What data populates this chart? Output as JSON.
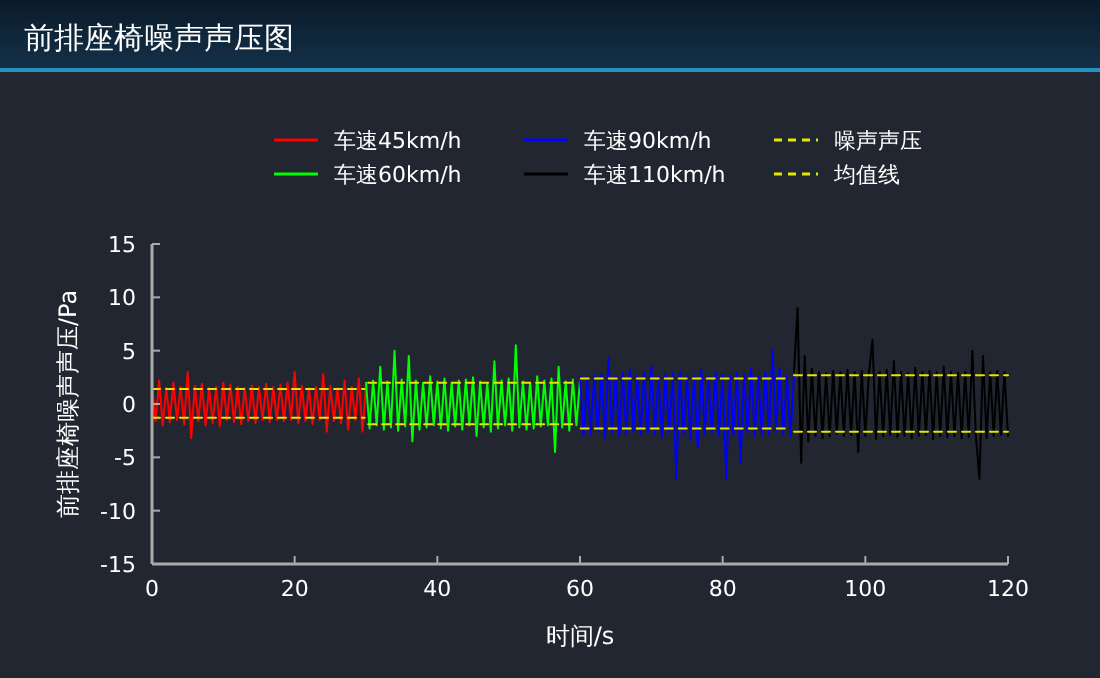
{
  "chart_data": {
    "type": "line",
    "title": "前排座椅噪声声压图",
    "xlabel": "时间/s",
    "ylabel": "前排座椅噪声声压/Pa",
    "xlim": [
      0,
      120
    ],
    "xticks": [
      0,
      20,
      40,
      60,
      80,
      100,
      120
    ],
    "ylim": [
      -15,
      15
    ],
    "yticks": [
      -15,
      -10,
      -5,
      0,
      5,
      10,
      15
    ],
    "grid": false,
    "legend": "top right",
    "series": [
      {
        "name": "车速45km/h",
        "color": "#ff0000",
        "x": [
          0,
          0.5,
          1,
          1.5,
          2,
          2.5,
          3,
          3.5,
          4,
          4.5,
          5,
          5.5,
          6,
          6.5,
          7,
          7.5,
          8,
          8.5,
          9,
          9.5,
          10,
          10.5,
          11,
          11.5,
          12,
          12.5,
          13,
          13.5,
          14,
          14.5,
          15,
          15.5,
          16,
          16.5,
          17,
          17.5,
          18,
          18.5,
          19,
          19.5,
          20,
          20.5,
          21,
          21.5,
          22,
          22.5,
          23,
          23.5,
          24,
          24.5,
          25,
          25.5,
          26,
          26.5,
          27,
          27.5,
          28,
          28.5,
          29,
          29.5,
          30
        ],
        "values": [
          1.8,
          -1.6,
          2.2,
          -2.0,
          1.5,
          -1.7,
          2.0,
          -1.5,
          1.6,
          -1.9,
          3.0,
          -3.2,
          1.7,
          -1.6,
          1.9,
          -2.0,
          1.5,
          -1.8,
          1.6,
          -2.1,
          2.0,
          -1.5,
          1.8,
          -1.7,
          1.6,
          -1.9,
          1.5,
          -1.6,
          1.7,
          -1.8,
          1.6,
          -1.5,
          1.9,
          -1.7,
          1.6,
          -1.5,
          1.8,
          -1.6,
          2.0,
          -1.5,
          3.0,
          -1.8,
          1.7,
          -1.6,
          1.5,
          -1.9,
          1.6,
          -1.5,
          2.8,
          -2.6,
          1.7,
          -1.6,
          1.5,
          -1.8,
          2.2,
          -2.4,
          1.6,
          -1.5,
          2.4,
          -2.6,
          1.7
        ]
      },
      {
        "name": "车速60km/h",
        "color": "#00ff00",
        "x": [
          30,
          30.5,
          31,
          31.5,
          32,
          32.5,
          33,
          33.5,
          34,
          34.5,
          35,
          35.5,
          36,
          36.5,
          37,
          37.5,
          38,
          38.5,
          39,
          39.5,
          40,
          40.5,
          41,
          41.5,
          42,
          42.5,
          43,
          43.5,
          44,
          44.5,
          45,
          45.5,
          46,
          46.5,
          47,
          47.5,
          48,
          48.5,
          49,
          49.5,
          50,
          50.5,
          51,
          51.5,
          52,
          52.5,
          53,
          53.5,
          54,
          54.5,
          55,
          55.5,
          56,
          56.5,
          57,
          57.5,
          58,
          58.5,
          59,
          59.5,
          60
        ],
        "values": [
          2.0,
          -2.3,
          2.2,
          -2.0,
          3.5,
          -2.4,
          2.1,
          -2.2,
          5.0,
          -2.5,
          2.3,
          -2.1,
          4.5,
          -3.5,
          2.2,
          -2.4,
          2.0,
          -2.2,
          2.6,
          -2.0,
          2.1,
          -2.3,
          2.4,
          -2.5,
          2.0,
          -2.1,
          2.2,
          -2.4,
          2.3,
          -2.0,
          2.5,
          -3.0,
          2.1,
          -2.2,
          2.0,
          -2.6,
          4.0,
          -2.3,
          2.2,
          -2.0,
          2.4,
          -2.5,
          5.5,
          -2.2,
          2.1,
          -2.4,
          2.0,
          -2.3,
          2.6,
          -2.1,
          2.2,
          -2.0,
          2.4,
          -4.5,
          3.5,
          -2.2,
          2.1,
          -2.5,
          2.3,
          -2.0,
          2.2
        ]
      },
      {
        "name": "车速90km/h",
        "color": "#0000ff",
        "x": [
          60,
          60.5,
          61,
          61.5,
          62,
          62.5,
          63,
          63.5,
          64,
          64.5,
          65,
          65.5,
          66,
          66.5,
          67,
          67.5,
          68,
          68.5,
          69,
          69.5,
          70,
          70.5,
          71,
          71.5,
          72,
          72.5,
          73,
          73.5,
          74,
          74.5,
          75,
          75.5,
          76,
          76.5,
          77,
          77.5,
          78,
          78.5,
          79,
          79.5,
          80,
          80.5,
          81,
          81.5,
          82,
          82.5,
          83,
          83.5,
          84,
          84.5,
          85,
          85.5,
          86,
          86.5,
          87,
          87.5,
          88,
          88.5,
          89,
          89.5,
          90
        ],
        "values": [
          2.6,
          -3.0,
          2.5,
          -2.8,
          2.7,
          -2.6,
          2.8,
          -3.2,
          4.3,
          -2.7,
          2.6,
          -3.0,
          2.9,
          -2.8,
          3.2,
          -2.6,
          2.7,
          -2.9,
          3.0,
          -2.7,
          3.5,
          -2.8,
          2.6,
          -3.1,
          2.8,
          -2.7,
          2.9,
          -7.0,
          3.0,
          -2.8,
          2.6,
          -3.3,
          2.7,
          -4.0,
          3.2,
          -2.8,
          2.6,
          -2.7,
          3.0,
          -3.0,
          2.8,
          -7.0,
          2.7,
          -2.9,
          3.0,
          -5.5,
          2.8,
          -2.7,
          3.3,
          -3.0,
          2.6,
          -2.8,
          3.0,
          -2.9,
          5.0,
          -2.6,
          3.4,
          -2.8,
          2.7,
          -3.0,
          2.6
        ]
      },
      {
        "name": "车速110km/h",
        "color": "#000000",
        "x": [
          90,
          90.5,
          91,
          91.5,
          92,
          92.5,
          93,
          93.5,
          94,
          94.5,
          95,
          95.5,
          96,
          96.5,
          97,
          97.5,
          98,
          98.5,
          99,
          99.5,
          100,
          100.5,
          101,
          101.5,
          102,
          102.5,
          103,
          103.5,
          104,
          104.5,
          105,
          105.5,
          106,
          106.5,
          107,
          107.5,
          108,
          108.5,
          109,
          109.5,
          110,
          110.5,
          111,
          111.5,
          112,
          112.5,
          113,
          113.5,
          114,
          114.5,
          115,
          115.5,
          116,
          116.5,
          117,
          117.5,
          118,
          118.5,
          119,
          119.5,
          120
        ],
        "values": [
          3.0,
          9.0,
          -5.5,
          4.5,
          -3.5,
          3.3,
          -3.0,
          3.0,
          -3.2,
          2.9,
          -3.0,
          3.1,
          -2.8,
          3.0,
          -3.0,
          3.2,
          -2.9,
          3.0,
          -4.5,
          3.1,
          -3.0,
          2.9,
          6.0,
          -3.3,
          3.0,
          -3.0,
          3.2,
          -2.9,
          4.0,
          -3.1,
          3.0,
          -3.0,
          2.9,
          -3.2,
          3.4,
          -3.0,
          3.0,
          -2.9,
          3.1,
          -3.3,
          3.0,
          -3.0,
          3.5,
          -3.1,
          3.0,
          -3.0,
          2.9,
          -3.2,
          3.0,
          -3.1,
          5.0,
          -3.0,
          -7.0,
          4.5,
          -3.2,
          3.0,
          -3.0,
          3.1,
          -2.9,
          3.0,
          -3.0
        ]
      },
      {
        "name": "噪声声压均值线",
        "color": "#e6e600",
        "line_style": "dashed",
        "x": [
          0,
          29.8
        ],
        "values": [
          1.4,
          1.4
        ]
      },
      {
        "color": "#e6e600",
        "line_style": "dashed",
        "x": [
          0,
          29.8
        ],
        "values": [
          -1.3,
          -1.3
        ]
      },
      {
        "color": "#e6e600",
        "line_style": "dashed",
        "x": [
          30.3,
          59.5
        ],
        "values": [
          2.0,
          2.0
        ]
      },
      {
        "color": "#e6e600",
        "line_style": "dashed",
        "x": [
          30.3,
          59.5
        ],
        "values": [
          -1.9,
          -1.9
        ]
      },
      {
        "color": "#e6e600",
        "line_style": "dashed",
        "x": [
          60.1,
          89.5
        ],
        "values": [
          2.4,
          2.4
        ]
      },
      {
        "color": "#e6e600",
        "line_style": "dashed",
        "x": [
          60.1,
          89.5
        ],
        "values": [
          -2.3,
          -2.3
        ]
      },
      {
        "color": "#e6e600",
        "line_style": "dashed",
        "x": [
          90,
          120
        ],
        "values": [
          2.7,
          2.7
        ]
      },
      {
        "color": "#e6e600",
        "line_style": "dashed",
        "x": [
          90,
          120
        ],
        "values": [
          -2.6,
          -2.6
        ]
      }
    ]
  }
}
